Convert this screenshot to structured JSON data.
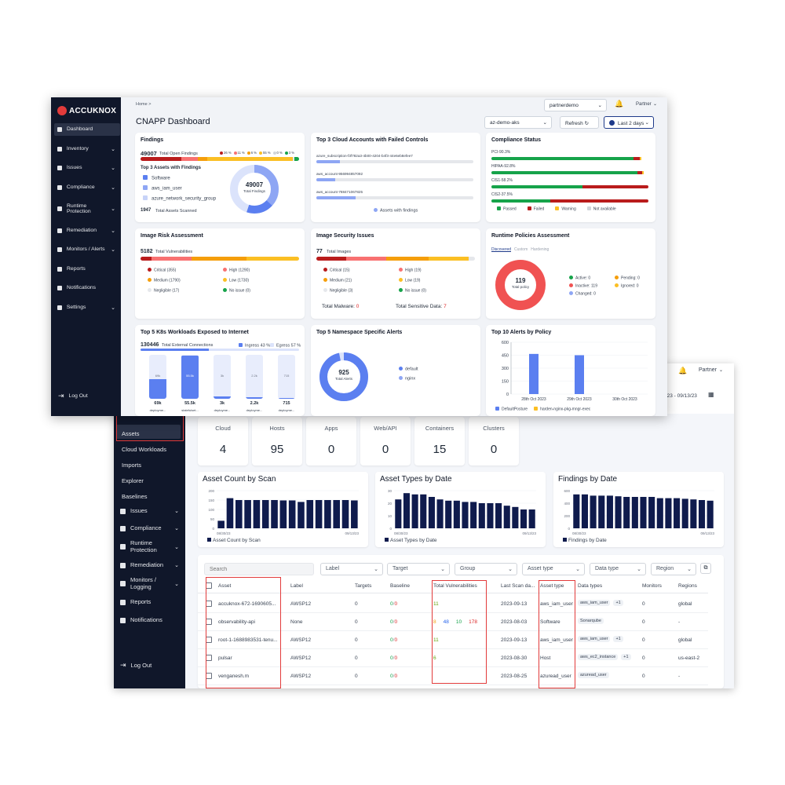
{
  "assets_window": {
    "header": {
      "bell_icon": "bell-icon",
      "user": "Partner",
      "date_range": "823 - 09/13/23"
    },
    "sidebar": {
      "sub_items": [
        "Assets",
        "Cloud Workloads",
        "Imports",
        "Explorer",
        "Baselines"
      ],
      "items": [
        {
          "label": "Issues",
          "icon": "warning-icon"
        },
        {
          "label": "Compliance",
          "icon": "compliance-icon"
        },
        {
          "label": "Runtime Protection",
          "icon": "runtime-icon"
        },
        {
          "label": "Remediation",
          "icon": "remediation-icon"
        },
        {
          "label": "Monitors / Logging",
          "icon": "monitor-icon"
        },
        {
          "label": "Reports",
          "icon": "report-icon"
        },
        {
          "label": "Notifications",
          "icon": "bell-icon"
        }
      ],
      "logout": "Log Out"
    },
    "stats": [
      {
        "label": "Cloud",
        "value": "4"
      },
      {
        "label": "Hosts",
        "value": "95"
      },
      {
        "label": "Apps",
        "value": "0"
      },
      {
        "label": "Web/API",
        "value": "0"
      },
      {
        "label": "Containers",
        "value": "15"
      },
      {
        "label": "Clusters",
        "value": "0"
      }
    ],
    "mini_charts": [
      {
        "title": "Asset Count by Scan",
        "legend": "Asset Count by Scan",
        "yticks": [
          "200",
          "150",
          "100",
          "50",
          "0"
        ],
        "x_start": "08/30/23",
        "x_end": "09/13/23",
        "ymax": 200,
        "values": [
          40,
          160,
          150,
          150,
          150,
          150,
          150,
          148,
          148,
          140,
          150,
          150,
          150,
          150,
          150,
          148
        ]
      },
      {
        "title": "Asset Types by Date",
        "legend": "Asset Types by Date",
        "yticks": [
          "30",
          "20",
          "10",
          "0"
        ],
        "x_start": "08/30/23",
        "x_end": "09/13/23",
        "ymax": 30,
        "values": [
          23,
          28,
          27,
          27,
          25,
          23,
          22,
          22,
          21,
          21,
          20,
          20,
          20,
          18,
          17,
          15,
          15
        ]
      },
      {
        "title": "Findings by Date",
        "legend": "Findings by Date",
        "yticks": [
          "600",
          "400",
          "200",
          "0"
        ],
        "x_start": "08/30/23",
        "x_end": "09/13/23",
        "ymax": 600,
        "values": [
          540,
          540,
          520,
          520,
          520,
          510,
          500,
          500,
          500,
          500,
          480,
          480,
          480,
          470,
          460,
          450,
          440
        ]
      }
    ],
    "table": {
      "search_placeholder": "Search",
      "filters": [
        "Label",
        "Target",
        "Group",
        "Asset type",
        "Data type",
        "Region"
      ],
      "columns": [
        "Asset",
        "Label",
        "Targets",
        "Baseline",
        "Total Vulnerabilities",
        "Last Scan da...",
        "Asset type",
        "Data types",
        "Monitors",
        "Regions"
      ],
      "rows": [
        {
          "asset": "accuknox-672-1690605...",
          "label": "AWSP12",
          "targets": "0",
          "baseline_a": "0",
          "baseline_b": "0",
          "vulns": [
            "11"
          ],
          "last_scan": "2023-09-13",
          "asset_type": "aws_iam_user",
          "data_type": "aws_iam_user",
          "extra": "+1",
          "monitors": "0",
          "region": "global"
        },
        {
          "asset": "observability-api",
          "label": "None",
          "targets": "0",
          "baseline_a": "0",
          "baseline_b": "0",
          "vulns": [
            "8",
            "48",
            "10",
            "178"
          ],
          "last_scan": "2023-08-03",
          "asset_type": "Software",
          "data_type": "Sonarqube",
          "extra": "",
          "monitors": "0",
          "region": "-"
        },
        {
          "asset": "root-1-1688983531-tenu...",
          "label": "AWSP12",
          "targets": "0",
          "baseline_a": "0",
          "baseline_b": "0",
          "vulns": [
            "11"
          ],
          "last_scan": "2023-09-13",
          "asset_type": "aws_iam_user",
          "data_type": "aws_iam_user",
          "extra": "+1",
          "monitors": "0",
          "region": "global"
        },
        {
          "asset": "pulsar",
          "label": "AWSP12",
          "targets": "0",
          "baseline_a": "0",
          "baseline_b": "0",
          "vulns": [
            "6"
          ],
          "last_scan": "2023-08-30",
          "asset_type": "Host",
          "data_type": "aws_ec2_instance",
          "extra": "+1",
          "monitors": "0",
          "region": "us-east-2"
        },
        {
          "asset": "venganesh.m",
          "label": "AWSP12",
          "targets": "0",
          "baseline_a": "0",
          "baseline_b": "0",
          "vulns": [],
          "last_scan": "2023-08-25",
          "asset_type": "azuread_user",
          "data_type": "azuread_user",
          "extra": "",
          "monitors": "0",
          "region": "-"
        }
      ]
    }
  },
  "dashboard": {
    "logo": "ACCUKNOX",
    "breadcrumb": "Home  >",
    "title": "CNAPP Dashboard",
    "tenant_select": "partnerdemo",
    "user": "Partner",
    "cluster_select": "az-demo-aks",
    "refresh": "Refresh",
    "range": "Last 2 days",
    "sidebar": [
      {
        "label": "Dashboard",
        "icon": "dashboard-icon"
      },
      {
        "label": "Inventory",
        "icon": "inventory-icon"
      },
      {
        "label": "Issues",
        "icon": "warning-icon"
      },
      {
        "label": "Compliance",
        "icon": "compliance-icon"
      },
      {
        "label": "Runtime Protection",
        "icon": "runtime-icon"
      },
      {
        "label": "Remediation",
        "icon": "remediation-icon"
      },
      {
        "label": "Monitors / Alerts",
        "icon": "monitor-icon"
      },
      {
        "label": "Reports",
        "icon": "report-icon"
      },
      {
        "label": "Notifications",
        "icon": "bell-icon"
      },
      {
        "label": "Settings",
        "icon": "gear-icon"
      }
    ],
    "logout": "Log Out",
    "findings": {
      "title": "Findings",
      "total": "49007",
      "total_label": "Total Open Findings",
      "pct_labels": [
        "26 %",
        "11 %",
        "6 %",
        "55 %",
        "0 %",
        "3 %"
      ],
      "top_title": "Top 3 Assets with Findings",
      "assets": [
        "Software",
        "aws_iam_user",
        "azure_network_security_group"
      ],
      "scanned": "1947",
      "scanned_label": "Total Assets Scanned",
      "donut_value": "49007",
      "donut_label": "Total Findings"
    },
    "cloud_accounts": {
      "title": "Top 3 Cloud Accounts with Failed Controls",
      "accounts": [
        {
          "name": "azure_subscription-f3f782a3-4b00-4204-b4f3-44e6eb8efee7",
          "fill": 0.15
        },
        {
          "name": "aws_account-956994857092",
          "fill": 0.12
        },
        {
          "name": "aws_account-788471067825",
          "fill": 0.25
        }
      ],
      "legend": "Assets with findings"
    },
    "compliance": {
      "title": "Compliance Status",
      "items": [
        {
          "name": "PCI-90.3%",
          "passed": 0.903,
          "failed": 0.04,
          "warning": 0.01
        },
        {
          "name": "HIPAA-92.8%",
          "passed": 0.928,
          "failed": 0.03,
          "warning": 0.01
        },
        {
          "name": "CIS1-58.2%",
          "passed": 0.582,
          "failed": 0.418,
          "warning": 0
        },
        {
          "name": "CIS2-37.5%",
          "passed": 0.375,
          "failed": 0.625,
          "warning": 0
        }
      ],
      "legend": [
        "Passed",
        "Failed",
        "Warning",
        "Not available"
      ]
    },
    "image_risk": {
      "title": "Image Risk Assessment",
      "total": "5182",
      "total_label": "Total Vulnerabilities",
      "legend": [
        "Critical (355)",
        "High (1290)",
        "Medium (1790)",
        "Low (1730)",
        "Negligible (17)",
        "No issue (0)"
      ]
    },
    "image_security": {
      "title": "Image Security Issues",
      "total": "77",
      "total_label": "Total Images",
      "legend": [
        "Critical (15)",
        "High (19)",
        "Medium (21)",
        "Low (19)",
        "Negligible (3)",
        "No issue (0)"
      ],
      "malware_label": "Total Malware:",
      "malware": "0",
      "sensitive_label": "Total Sensitive Data:",
      "sensitive": "7"
    },
    "runtime": {
      "title": "Runtime Policies Assessment",
      "tabs": [
        "Discovered",
        "Custom",
        "Hardening"
      ],
      "donut_value": "119",
      "donut_label": "Total policy",
      "legend": [
        "Active: 0",
        "Pending: 0",
        "Inactive: 119",
        "Ignored: 0",
        "Changed: 0"
      ]
    },
    "k8s": {
      "title": "Top 5 K8s Workloads Exposed to Internet",
      "total": "130446",
      "total_label": "Total External Connections",
      "ingress": "Ingress 43 %",
      "egress": "Egress 57 %",
      "workloads": [
        {
          "inner": "69k",
          "value": "69k",
          "name": "deploymе...",
          "fill": 0.45
        },
        {
          "inner": "55.5k",
          "value": "55.5k",
          "name": "statefulset...",
          "fill": 0.98
        },
        {
          "inner": "3k",
          "value": "3k",
          "name": "deploymе...",
          "fill": 0.05
        },
        {
          "inner": "2.2k",
          "value": "2.2k",
          "name": "deploymе...",
          "fill": 0.04
        },
        {
          "inner": "715",
          "value": "715",
          "name": "deploymе...",
          "fill": 0.02
        }
      ]
    },
    "namespace": {
      "title": "Top 5 Namespace Specific Alerts",
      "donut_value": "925",
      "donut_label": "Total Alerts",
      "legend": [
        "default",
        "nginx"
      ]
    },
    "alerts_by_policy": {
      "title": "Top 10 Alerts by Policy",
      "legend": [
        "DefaultPosture",
        "harden-nginx-pkg-mngr-exec"
      ]
    }
  },
  "chart_data": {
    "type": "bar",
    "title": "Top 10 Alerts by Policy",
    "categories": [
      "28th Oct 2023",
      "29th Oct 2023",
      "30th Oct 2023"
    ],
    "series": [
      {
        "name": "DefaultPosture",
        "values": [
          465,
          450,
          0
        ]
      },
      {
        "name": "harden-nginx-pkg-mngr-exec",
        "values": [
          0,
          0,
          0
        ]
      }
    ],
    "yticks": [
      "600",
      "450",
      "300",
      "150",
      "0"
    ],
    "ylim": [
      0,
      600
    ]
  }
}
